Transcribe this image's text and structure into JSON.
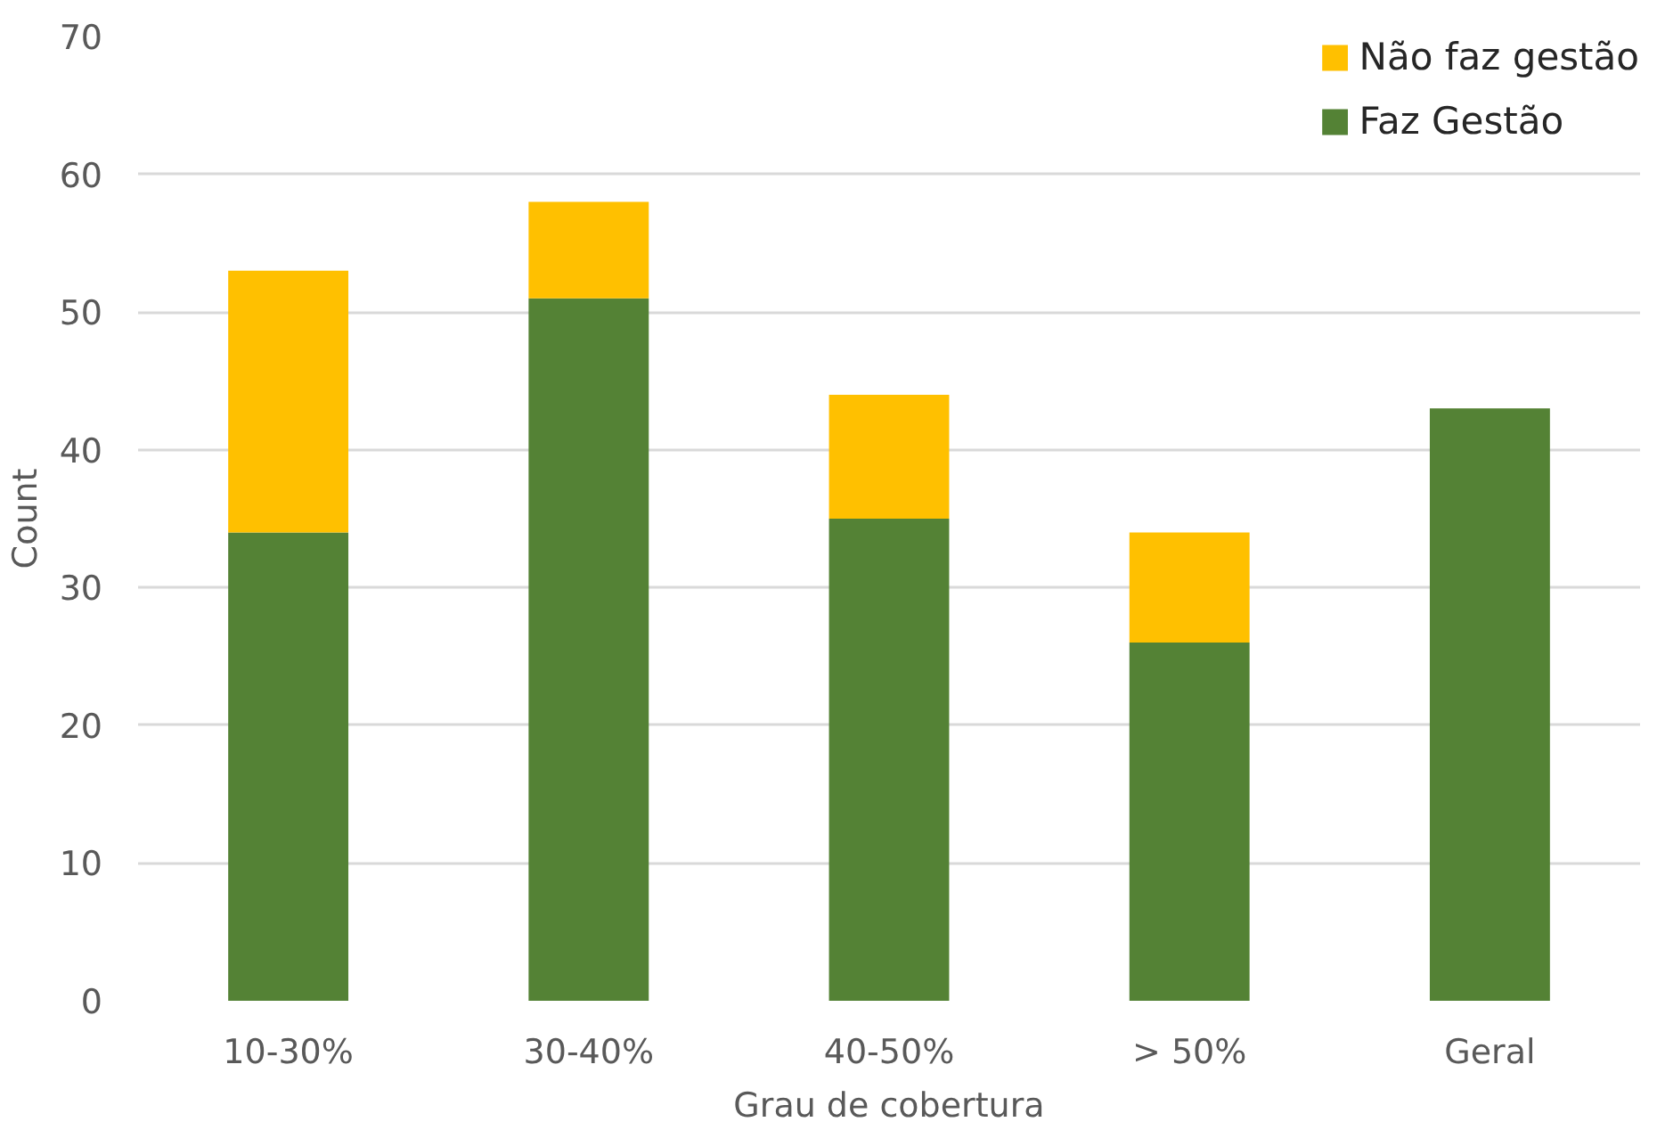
{
  "chart_data": {
    "type": "bar",
    "stacked": true,
    "xlabel": "Grau de cobertura",
    "ylabel": "Count",
    "categories": [
      "10-30%",
      "30-40%",
      "40-50%",
      "> 50%",
      "Geral"
    ],
    "series": [
      {
        "name": "Faz Gestão",
        "color": "#548235",
        "values": [
          34,
          51,
          35,
          26,
          43
        ]
      },
      {
        "name": "Não faz gestão",
        "color": "#ffc000",
        "values": [
          19,
          7,
          9,
          8,
          null
        ]
      }
    ],
    "ylim": [
      0,
      70
    ],
    "yticks": [
      0,
      10,
      20,
      30,
      40,
      50,
      60,
      70
    ],
    "grid": "y",
    "legend": "top right"
  }
}
